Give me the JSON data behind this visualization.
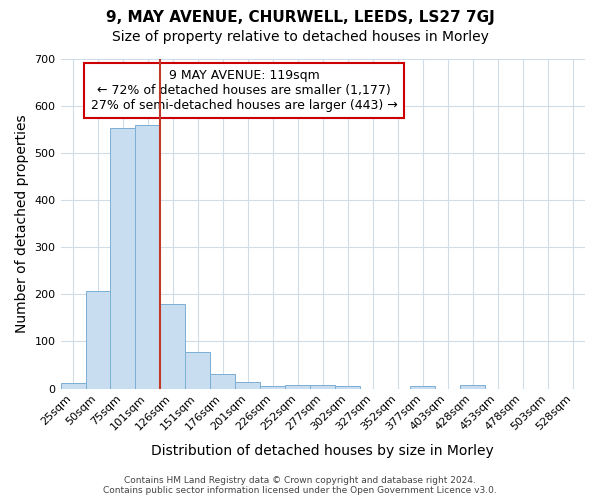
{
  "title": "9, MAY AVENUE, CHURWELL, LEEDS, LS27 7GJ",
  "subtitle": "Size of property relative to detached houses in Morley",
  "xlabel": "Distribution of detached houses by size in Morley",
  "ylabel": "Number of detached properties",
  "footer": "Contains HM Land Registry data © Crown copyright and database right 2024.\nContains public sector information licensed under the Open Government Licence v3.0.",
  "categories": [
    "25sqm",
    "50sqm",
    "75sqm",
    "101sqm",
    "126sqm",
    "151sqm",
    "176sqm",
    "201sqm",
    "226sqm",
    "252sqm",
    "277sqm",
    "302sqm",
    "327sqm",
    "352sqm",
    "377sqm",
    "403sqm",
    "428sqm",
    "453sqm",
    "478sqm",
    "503sqm",
    "528sqm"
  ],
  "values": [
    12,
    207,
    554,
    560,
    180,
    77,
    30,
    13,
    5,
    8,
    7,
    5,
    0,
    0,
    5,
    0,
    8,
    0,
    0,
    0,
    0
  ],
  "bar_color": "#c9ddf0",
  "bar_edgecolor": "#7bafd4",
  "vline_after_index": 3,
  "vline_color": "#c0392b",
  "annotation_text": "9 MAY AVENUE: 119sqm\n← 72% of detached houses are smaller (1,177)\n27% of semi-detached houses are larger (443) →",
  "annotation_box_color": "white",
  "annotation_box_edgecolor": "#cc0000",
  "ylim": [
    0,
    700
  ],
  "yticks": [
    0,
    100,
    200,
    300,
    400,
    500,
    600,
    700
  ],
  "background_color": "#ffffff",
  "plot_background_color": "#ffffff",
  "grid_color": "#d0dce8",
  "title_fontsize": 11,
  "subtitle_fontsize": 10,
  "axis_label_fontsize": 10,
  "tick_fontsize": 8,
  "annotation_fontsize": 9
}
